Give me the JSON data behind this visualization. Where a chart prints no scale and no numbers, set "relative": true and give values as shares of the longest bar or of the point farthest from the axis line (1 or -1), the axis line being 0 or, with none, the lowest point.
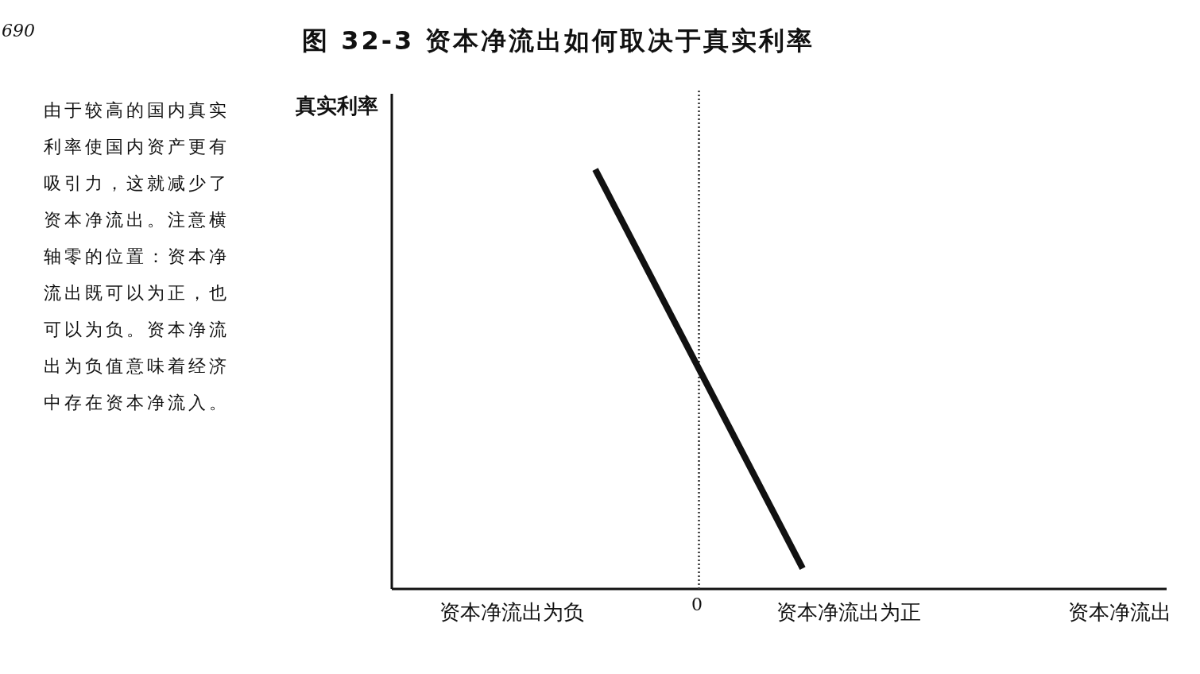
{
  "chart_data": {
    "type": "line",
    "relative": true,
    "title": "图 32-3 资本净流出如何取决于真实利率",
    "categories": [
      null,
      null,
      null
    ],
    "series": [
      {
        "color": "#111111",
        "values": [
          1,
          null,
          0.049
        ]
      }
    ],
    "annotations": [
      "由于较高的国内真实利率使国内资产更有吸引力，这就减少了资本净流出。注意横轴零的位置：资本净流出既可以为正，也可以为负。资本净流出为负值意味着经济中存在资本净流入。",
      "资本净流出为负",
      "资本净流出为正",
      "690",
      "0",
      "资本净流出",
      "真实利率"
    ],
    "marker": "none",
    "line_style": "solid"
  }
}
